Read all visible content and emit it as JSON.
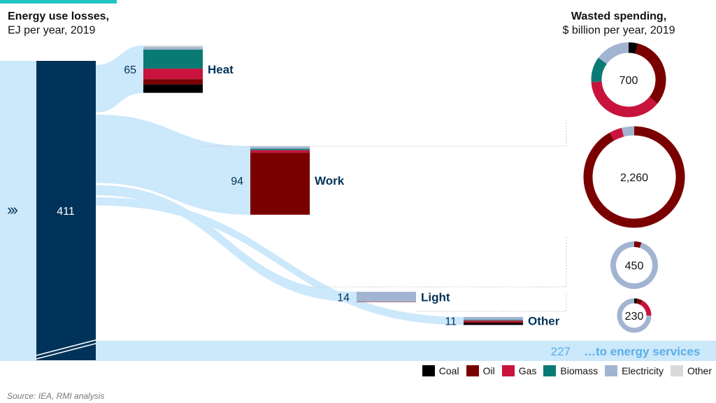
{
  "titles": {
    "left_title": "Energy use losses,",
    "left_subtitle": "EJ per year, 2019",
    "right_title": "Wasted spending,",
    "right_subtitle": "$ billion per year, 2019"
  },
  "source": "Source: IEA, RMI analysis",
  "arrow_glyph": "›››",
  "colors": {
    "Coal": "#000000",
    "Oil": "#7a0000",
    "Gas": "#c8143c",
    "Biomass": "#0a7b74",
    "Electricity": "#a3b4d2",
    "Other": "#d9d9d9",
    "total_bar": "#003359",
    "flow": "#cce8fb",
    "category_label": "#003359",
    "services_label": "#5aaee6"
  },
  "legend": [
    "Coal",
    "Oil",
    "Gas",
    "Biomass",
    "Electricity",
    "Other"
  ],
  "chart_data": [
    {
      "type": "sankey",
      "title": "Energy use losses,",
      "subtitle": "EJ per year, 2019",
      "total": {
        "value": 411,
        "label": "411"
      },
      "categories": [
        "Heat",
        "Work",
        "Light",
        "Other",
        "...to energy services"
      ],
      "values": [
        65,
        94,
        14,
        11,
        227
      ],
      "labels": [
        "65",
        "94",
        "14",
        "11",
        "227"
      ],
      "services_label": "…to energy services",
      "fuel_breakdown": {
        "Heat": {
          "Coal": 8,
          "Oil": 5,
          "Gas": 10,
          "Biomass": 18,
          "Electricity": 2.5,
          "Other": 1.5
        },
        "Work": {
          "Coal": 0,
          "Oil": 85,
          "Gas": 3.5,
          "Biomass": 2,
          "Electricity": 3,
          "Other": 0.5
        },
        "Light": {
          "Coal": 0,
          "Oil": 0.5,
          "Gas": 0,
          "Biomass": 0,
          "Electricity": 13.5,
          "Other": 0
        },
        "Other": {
          "Coal": 2.5,
          "Oil": 2,
          "Gas": 1.5,
          "Biomass": 1,
          "Electricity": 4,
          "Other": 0
        }
      }
    },
    {
      "type": "pie",
      "title": "Wasted spending,",
      "subtitle": "$ billion per year, 2019",
      "categories": [
        "Heat",
        "Work",
        "Light",
        "Other"
      ],
      "values": [
        700,
        2260,
        450,
        230
      ],
      "labels": [
        "700",
        "2,260",
        "450",
        "230"
      ],
      "shares": [
        {
          "Coal": 0.04,
          "Oil": 0.32,
          "Gas": 0.38,
          "Biomass": 0.11,
          "Electricity": 0.15
        },
        {
          "Coal": 0,
          "Oil": 0.92,
          "Gas": 0.04,
          "Biomass": 0,
          "Electricity": 0.04
        },
        {
          "Coal": 0,
          "Oil": 0.05,
          "Gas": 0,
          "Biomass": 0,
          "Electricity": 0.95
        },
        {
          "Coal": 0.03,
          "Oil": 0.05,
          "Gas": 0.17,
          "Biomass": 0,
          "Electricity": 0.75
        }
      ]
    }
  ]
}
